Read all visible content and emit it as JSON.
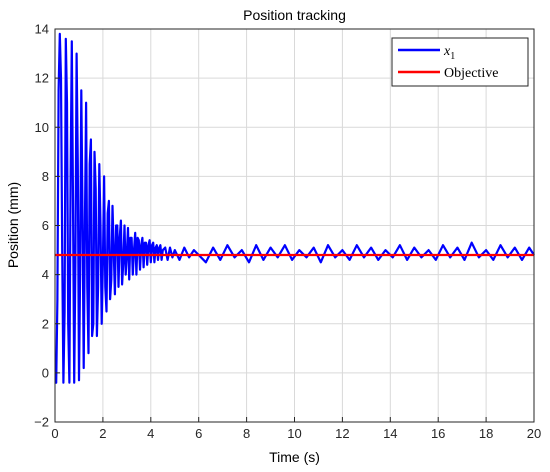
{
  "chart_data": {
    "type": "line",
    "title": "Position tracking",
    "xlabel": "Time (s)",
    "ylabel": "Position (mm)",
    "xlim": [
      0,
      20
    ],
    "ylim": [
      -2,
      14
    ],
    "xticks": [
      "0",
      "2",
      "4",
      "6",
      "8",
      "10",
      "12",
      "14",
      "16",
      "18",
      "20"
    ],
    "yticks": [
      "−2",
      "0",
      "2",
      "4",
      "6",
      "8",
      "10",
      "12",
      "14"
    ],
    "grid": true,
    "legend_position": "top-right",
    "series": [
      {
        "name": "x",
        "name_subscript": "1",
        "color": "#0000ff",
        "x": [
          0.0,
          0.05,
          0.1,
          0.15,
          0.2,
          0.25,
          0.3,
          0.35,
          0.4,
          0.45,
          0.5,
          0.55,
          0.6,
          0.65,
          0.7,
          0.75,
          0.8,
          0.85,
          0.9,
          0.95,
          1.0,
          1.05,
          1.1,
          1.15,
          1.2,
          1.25,
          1.3,
          1.35,
          1.4,
          1.45,
          1.5,
          1.55,
          1.6,
          1.65,
          1.7,
          1.75,
          1.8,
          1.85,
          1.9,
          1.95,
          2.0,
          2.05,
          2.1,
          2.15,
          2.2,
          2.25,
          2.3,
          2.35,
          2.4,
          2.45,
          2.5,
          2.55,
          2.6,
          2.65,
          2.7,
          2.75,
          2.8,
          2.85,
          2.9,
          2.95,
          3.0,
          3.05,
          3.1,
          3.15,
          3.2,
          3.25,
          3.3,
          3.35,
          3.4,
          3.45,
          3.5,
          3.55,
          3.6,
          3.65,
          3.7,
          3.75,
          3.8,
          3.85,
          3.9,
          3.95,
          4.0,
          4.05,
          4.1,
          4.15,
          4.2,
          4.25,
          4.3,
          4.35,
          4.4,
          4.45,
          4.5,
          4.6,
          4.7,
          4.8,
          4.9,
          5.0,
          5.2,
          5.4,
          5.6,
          5.8,
          6.0,
          6.3,
          6.6,
          6.9,
          7.2,
          7.5,
          7.8,
          8.1,
          8.4,
          8.7,
          9.0,
          9.3,
          9.6,
          9.9,
          10.2,
          10.5,
          10.8,
          11.1,
          11.4,
          11.7,
          12.0,
          12.3,
          12.6,
          12.9,
          13.2,
          13.5,
          13.8,
          14.1,
          14.4,
          14.7,
          15.0,
          15.3,
          15.6,
          15.9,
          16.2,
          16.5,
          16.8,
          17.1,
          17.4,
          17.7,
          18.0,
          18.3,
          18.6,
          18.9,
          19.2,
          19.5,
          19.8,
          20.0
        ],
        "y": [
          -0.4,
          -0.4,
          3.0,
          11.5,
          13.8,
          12.0,
          5.0,
          -0.4,
          2.5,
          13.6,
          11.0,
          2.0,
          -0.4,
          8.0,
          13.5,
          7.0,
          -0.4,
          4.5,
          13.0,
          8.5,
          -0.3,
          4.0,
          11.5,
          6.5,
          0.2,
          6.0,
          11.0,
          3.5,
          0.8,
          8.5,
          9.5,
          1.5,
          2.0,
          9.0,
          7.5,
          1.5,
          3.5,
          8.5,
          6.0,
          2.0,
          4.5,
          8.0,
          3.5,
          2.5,
          6.5,
          7.0,
          3.0,
          3.8,
          6.8,
          5.0,
          3.2,
          6.0,
          6.0,
          3.5,
          5.5,
          6.2,
          3.6,
          4.5,
          6.0,
          4.0,
          4.8,
          5.9,
          3.8,
          5.5,
          5.5,
          4.0,
          5.0,
          5.7,
          4.0,
          5.5,
          5.4,
          4.2,
          5.2,
          5.5,
          4.3,
          5.3,
          5.3,
          4.4,
          5.2,
          5.4,
          4.5,
          5.2,
          5.3,
          4.5,
          5.1,
          5.2,
          4.6,
          5.1,
          5.2,
          4.6,
          5.0,
          5.1,
          4.6,
          5.1,
          4.7,
          5.0,
          4.6,
          5.1,
          4.7,
          5.0,
          4.8,
          4.5,
          5.1,
          4.6,
          5.2,
          4.7,
          5.0,
          4.5,
          5.2,
          4.6,
          5.1,
          4.7,
          5.2,
          4.6,
          5.0,
          4.7,
          5.1,
          4.5,
          5.2,
          4.7,
          5.0,
          4.6,
          5.2,
          4.7,
          5.1,
          4.6,
          5.0,
          4.7,
          5.2,
          4.6,
          5.1,
          4.7,
          5.0,
          4.6,
          5.2,
          4.7,
          5.1,
          4.6,
          5.3,
          4.7,
          5.0,
          4.6,
          5.2,
          4.7,
          5.1,
          4.6,
          5.1,
          4.8
        ]
      },
      {
        "name": "Objective",
        "color": "#ff0000",
        "x": [
          0,
          20
        ],
        "y": [
          4.8,
          4.8
        ]
      }
    ]
  }
}
